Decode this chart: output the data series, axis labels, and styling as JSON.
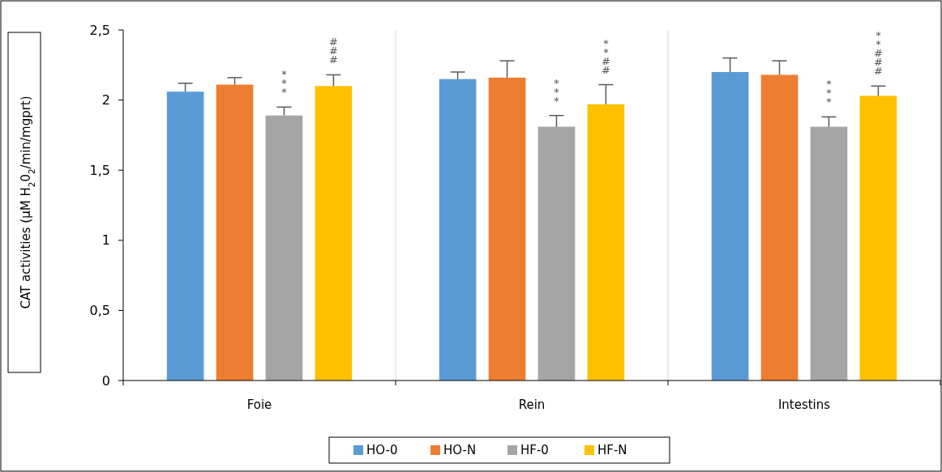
{
  "chart_data": {
    "type": "bar",
    "ylabel": "CAT activities (µM H$_{2}$0$_{2}$/min/mgprt)",
    "categories": [
      "Foie",
      "Rein",
      "Intestins"
    ],
    "series": [
      {
        "name": "HO-0",
        "color": "#5b9bd5",
        "values": [
          2.06,
          2.15,
          2.2
        ],
        "errors": [
          0.06,
          0.05,
          0.1
        ]
      },
      {
        "name": "HO-N",
        "color": "#ed7d31",
        "values": [
          2.11,
          2.16,
          2.18
        ],
        "errors": [
          0.05,
          0.12,
          0.1
        ]
      },
      {
        "name": "HF-0",
        "color": "#a5a5a5",
        "values": [
          1.89,
          1.81,
          1.81
        ],
        "errors": [
          0.06,
          0.08,
          0.07
        ]
      },
      {
        "name": "HF-N",
        "color": "#ffc000",
        "values": [
          2.1,
          1.97,
          2.03
        ],
        "errors": [
          0.08,
          0.14,
          0.07
        ]
      }
    ],
    "ylim": [
      0,
      2.5
    ],
    "yticks": [
      0,
      {
        "value": 0.5,
        "label": "0,5"
      },
      1,
      {
        "value": 1.5,
        "label": "1,5"
      },
      2,
      {
        "value": 2.5,
        "label": "2,5"
      }
    ],
    "legend": "bottom",
    "annotations": [
      "***",
      "###",
      "***",
      "**##",
      "***",
      "**###"
    ]
  }
}
